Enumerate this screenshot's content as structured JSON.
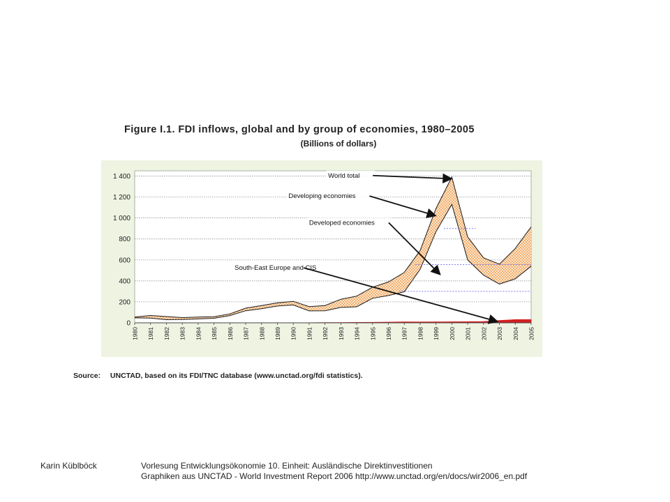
{
  "figure": {
    "title": "Figure I.1. FDI inflows, global and by group of economies, 1980–2005",
    "subtitle": "(Billions of dollars)",
    "source_label": "Source:",
    "source_text": "UNCTAD, based on its FDI/TNC database (www.unctad.org/fdi statistics)."
  },
  "footer": {
    "author": "Karin Küblböck",
    "line1": "Vorlesung Entwicklungsökonomie 10. Einheit: Ausländische Direktinvestitionen",
    "line2": "Graphiken aus UNCTAD  - World Investment Report 2006 http://www.unctad.org/en/docs/wir2006_en.pdf"
  },
  "chart_data": {
    "type": "area",
    "x": [
      1980,
      1981,
      1982,
      1983,
      1984,
      1985,
      1986,
      1987,
      1988,
      1989,
      1990,
      1991,
      1992,
      1993,
      1994,
      1995,
      1996,
      1997,
      1998,
      1999,
      2000,
      2001,
      2002,
      2003,
      2004,
      2005
    ],
    "x_tick_labels": [
      "1980",
      "1981",
      "1982",
      "1983",
      "1984",
      "1985",
      "1986",
      "1987",
      "1988",
      "1989",
      "1990",
      "1991",
      "1992",
      "1993",
      "1994",
      "1995",
      "1996",
      "1997",
      "1998",
      "1999",
      "2000",
      "2001",
      "2002",
      "2003",
      "2004",
      "2005"
    ],
    "y_ticks": [
      0,
      200,
      400,
      600,
      800,
      1000,
      1200,
      1400
    ],
    "y_tick_labels": [
      "0",
      "200",
      "400",
      "600",
      "800",
      "1 000",
      "1 200",
      "1 400"
    ],
    "ylim": [
      0,
      1450
    ],
    "grid": true,
    "series": [
      {
        "name": "World total",
        "values": [
          55,
          70,
          60,
          50,
          55,
          58,
          85,
          140,
          165,
          190,
          205,
          155,
          165,
          225,
          255,
          340,
          390,
          480,
          690,
          1090,
          1390,
          820,
          620,
          560,
          710,
          915
        ]
      },
      {
        "name": "Developing economies",
        "values": [
          8,
          25,
          30,
          18,
          18,
          15,
          16,
          25,
          30,
          30,
          35,
          41,
          50,
          78,
          102,
          106,
          130,
          185,
          180,
          220,
          255,
          220,
          160,
          180,
          280,
          335
        ]
      },
      {
        "name": "Developed economies",
        "values": [
          47,
          45,
          30,
          32,
          37,
          43,
          69,
          115,
          135,
          160,
          170,
          114,
          115,
          147,
          153,
          234,
          260,
          295,
          510,
          870,
          1130,
          600,
          455,
          370,
          420,
          540
        ]
      },
      {
        "name": "South-East Europe and CIS",
        "values": [
          0,
          0,
          0,
          0,
          0,
          0,
          0,
          0,
          0,
          0,
          0,
          0,
          1,
          2,
          3,
          4,
          6,
          8,
          7,
          8,
          9,
          10,
          11,
          22,
          30,
          30
        ]
      }
    ],
    "annotations": [
      "World total",
      "Developing economies",
      "Developed economies",
      "South-East Europe and CIS"
    ],
    "colors": {
      "band": "#f5b06a",
      "band_fill": "#fde6c8",
      "border": "#1a1a1a",
      "cis": "#d42020",
      "grid": "#808080",
      "reference_lines": "#7b7bf0",
      "panel_bg": "#eef3e2"
    }
  }
}
